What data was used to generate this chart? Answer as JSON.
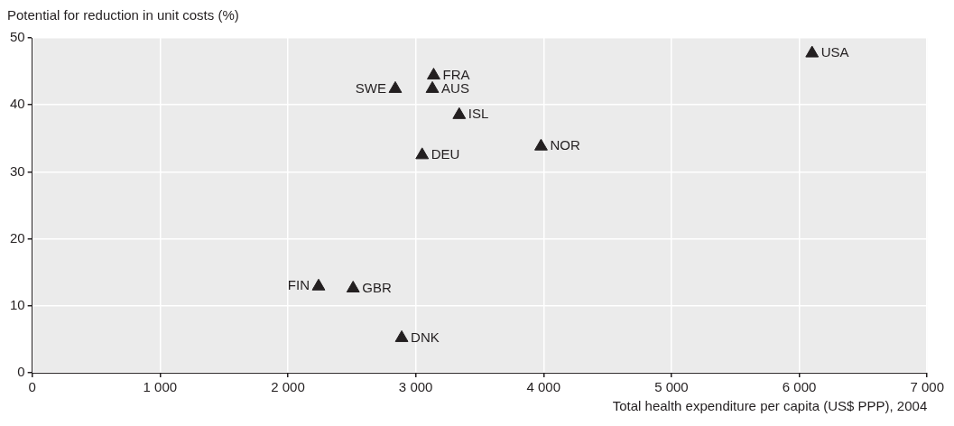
{
  "chart_data": {
    "type": "scatter",
    "xlabel": "Total health expenditure per capita (US$ PPP), 2004",
    "ylabel": "Potential for reduction in unit costs (%)",
    "x": [
      6100,
      3140,
      3130,
      2840,
      3340,
      3980,
      3050,
      2240,
      2510,
      2890
    ],
    "values": [
      47.7,
      44.4,
      42.4,
      42.4,
      38.5,
      33.8,
      32.5,
      12.9,
      12.6,
      5.2
    ],
    "color": "#231f20",
    "marker": "triangle",
    "grid": true,
    "xlim": [
      0,
      7000
    ],
    "xticks": [
      0,
      {
        "value": 1000,
        "label": "1 000"
      },
      {
        "value": 2000,
        "label": "2 000"
      },
      {
        "value": 3000,
        "label": "3 000"
      },
      {
        "value": 4000,
        "label": "4 000"
      },
      {
        "value": 5000,
        "label": "5 000"
      },
      {
        "value": 6000,
        "label": "6 000"
      },
      {
        "value": 7000,
        "label": "7 000"
      }
    ],
    "ylim": [
      0,
      50
    ],
    "yticks": [
      0,
      10,
      20,
      30,
      40,
      50
    ],
    "annotations": [
      {
        "text": "USA",
        "x": 6100,
        "y": 47.7
      },
      {
        "text": "FRA",
        "x": 3140,
        "y": 44.4
      },
      {
        "text": "AUS",
        "x": 3130,
        "y": 42.4
      },
      {
        "text": "SWE",
        "x": 2840,
        "y": 42.4
      },
      {
        "text": "ISL",
        "x": 3340,
        "y": 38.5
      },
      {
        "text": "NOR",
        "x": 3980,
        "y": 33.8
      },
      {
        "text": "DEU",
        "x": 3050,
        "y": 32.5
      },
      {
        "text": "FIN",
        "x": 2240,
        "y": 12.9
      },
      {
        "text": "GBR",
        "x": 2510,
        "y": 12.6
      },
      {
        "text": "DNK",
        "x": 2890,
        "y": 5.2
      }
    ]
  }
}
